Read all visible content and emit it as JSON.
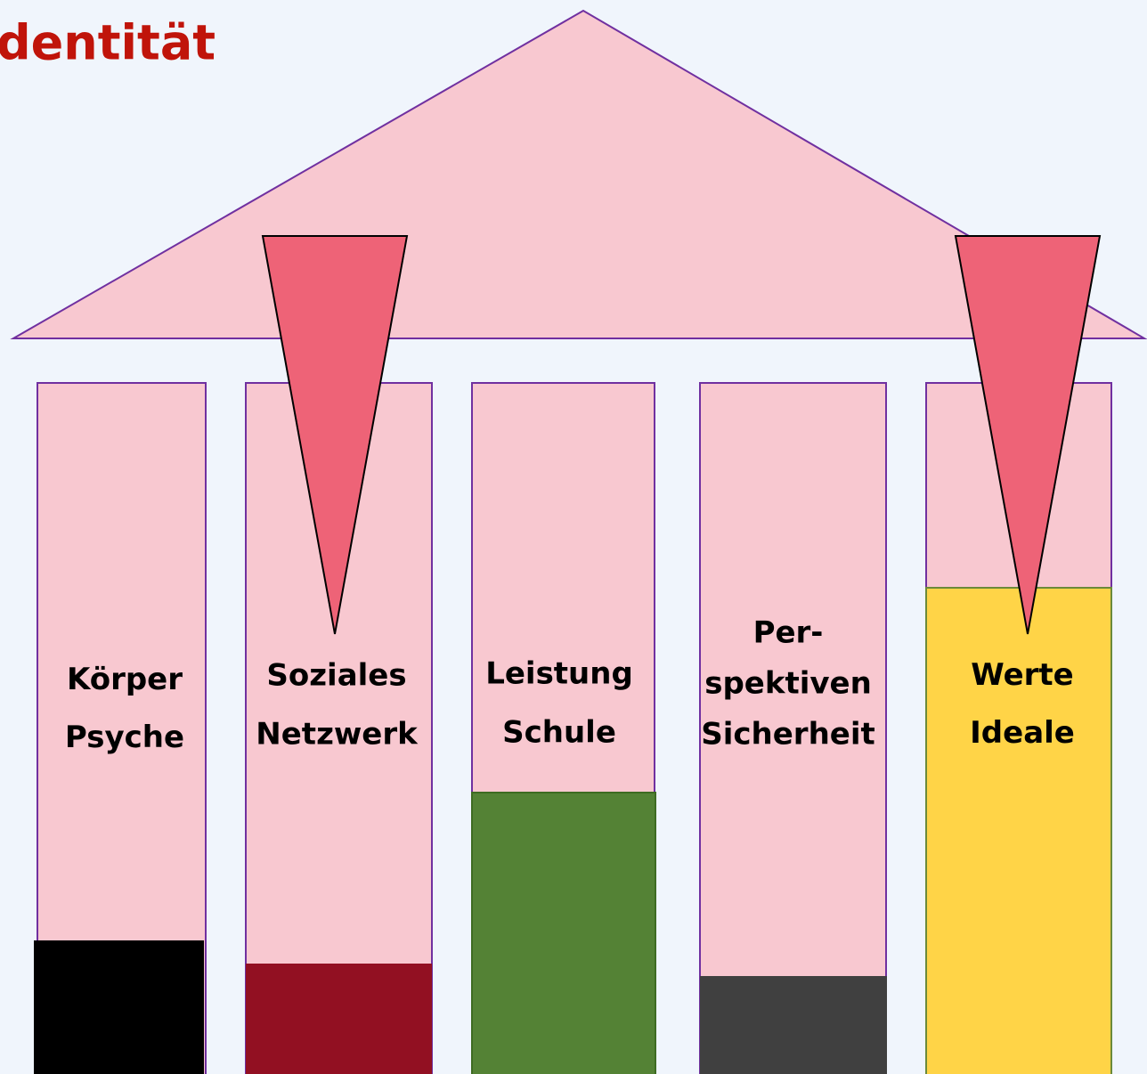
{
  "title": "dentität",
  "pillars": [
    {
      "lines": [
        "Körper",
        "Psyche"
      ]
    },
    {
      "lines": [
        "Soziales",
        "Netzwerk"
      ]
    },
    {
      "lines": [
        "Leistung",
        "Schule"
      ]
    },
    {
      "lines": [
        "Per-",
        "spektiven",
        "Sicherheit"
      ]
    },
    {
      "lines": [
        "Werte",
        "Ideale"
      ]
    }
  ]
}
